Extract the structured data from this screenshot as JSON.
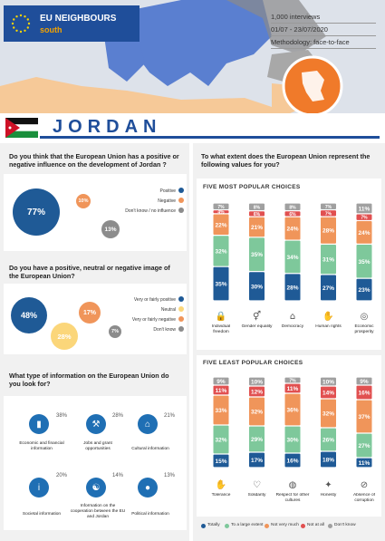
{
  "header": {
    "brand_line1": "EU NEIGHBOURS",
    "brand_line2": "south",
    "meta": [
      "1,000 interviews",
      "01/07 - 23/07/2020",
      "Methodology: face-to-face"
    ],
    "country": "JORDAN"
  },
  "q1": {
    "question": "Do you think that the European Union has a positive or negative influence on the development of Jordan ?",
    "items": [
      {
        "label": "Positive",
        "value": "77%",
        "color": "#1f5a96"
      },
      {
        "label": "Negative",
        "value": "10%",
        "color": "#f0955a"
      },
      {
        "label": "Don't know / no influence",
        "value": "13%",
        "color": "#8c8c8c"
      }
    ]
  },
  "q2": {
    "question": "Do you have a positive, neutral or negative image of the European Union?",
    "items": [
      {
        "label": "Very or fairly positive",
        "value": "48%",
        "color": "#1f5a96"
      },
      {
        "label": "Neutral",
        "value": "28%",
        "color": "#fbd67a"
      },
      {
        "label": "Very or fairly negative",
        "value": "17%",
        "color": "#f0955a"
      },
      {
        "label": "Don't know",
        "value": "7%",
        "color": "#8c8c8c"
      }
    ]
  },
  "q3": {
    "question": "What type of information on the European Union do you look for?",
    "items": [
      {
        "label": "Economic and financial information",
        "value": "38%",
        "icon": "chart-icon"
      },
      {
        "label": "Jobs and grant opportunities",
        "value": "28%",
        "icon": "tools-icon"
      },
      {
        "label": "Cultural information",
        "value": "21%",
        "icon": "museum-icon"
      },
      {
        "label": "Societal information",
        "value": "20%",
        "icon": "info-icon"
      },
      {
        "label": "Information on the cooperation between the EU and Jordan",
        "value": "14%",
        "icon": "handshake-icon"
      },
      {
        "label": "Political information",
        "value": "13%",
        "icon": "person-icon"
      }
    ]
  },
  "q4": {
    "question": "To what extent does the European Union represent the following values for you?",
    "popular_title": "FIVE MOST POPULAR CHOICES",
    "least_title": "FIVE LEAST POPULAR CHOICES",
    "legend": [
      "Totally",
      "To a large extent",
      "Not very much",
      "Not at all",
      "Don't know"
    ],
    "colors": [
      "#1f5a96",
      "#7ec89b",
      "#f0955a",
      "#e15050",
      "#a0a0a0"
    ]
  },
  "chart_data": [
    {
      "type": "bar",
      "title": "FIVE MOST POPULAR CHOICES",
      "categories": [
        "Individual freedom",
        "Gender equality",
        "Democracy",
        "Human rights",
        "Economic prosperity"
      ],
      "series": [
        {
          "name": "Totally",
          "values": [
            35,
            30,
            28,
            27,
            23
          ]
        },
        {
          "name": "To a large extent",
          "values": [
            32,
            35,
            34,
            31,
            35
          ]
        },
        {
          "name": "Not very much",
          "values": [
            22,
            21,
            24,
            28,
            24
          ]
        },
        {
          "name": "Not at all",
          "values": [
            4,
            6,
            6,
            7,
            7
          ]
        },
        {
          "name": "Don't know",
          "values": [
            7,
            8,
            8,
            7,
            11
          ]
        }
      ],
      "icons": [
        "lock-icon",
        "gender-icon",
        "parliament-icon",
        "rights-icon",
        "coins-icon"
      ]
    },
    {
      "type": "bar",
      "title": "FIVE LEAST POPULAR CHOICES",
      "categories": [
        "Tolerance",
        "Solidarity",
        "Respect for other cultures",
        "Honesty",
        "Absence of corruption"
      ],
      "series": [
        {
          "name": "Totally",
          "values": [
            15,
            17,
            16,
            18,
            11
          ]
        },
        {
          "name": "To a large extent",
          "values": [
            32,
            29,
            30,
            26,
            27
          ]
        },
        {
          "name": "Not very much",
          "values": [
            33,
            32,
            36,
            32,
            37
          ]
        },
        {
          "name": "Not at all",
          "values": [
            11,
            12,
            11,
            14,
            16
          ]
        },
        {
          "name": "Don't know",
          "values": [
            9,
            10,
            7,
            10,
            9
          ]
        }
      ],
      "icons": [
        "hands-icon",
        "heart-hands-icon",
        "globe-icon",
        "handshake-icon",
        "stop-icon"
      ]
    }
  ]
}
